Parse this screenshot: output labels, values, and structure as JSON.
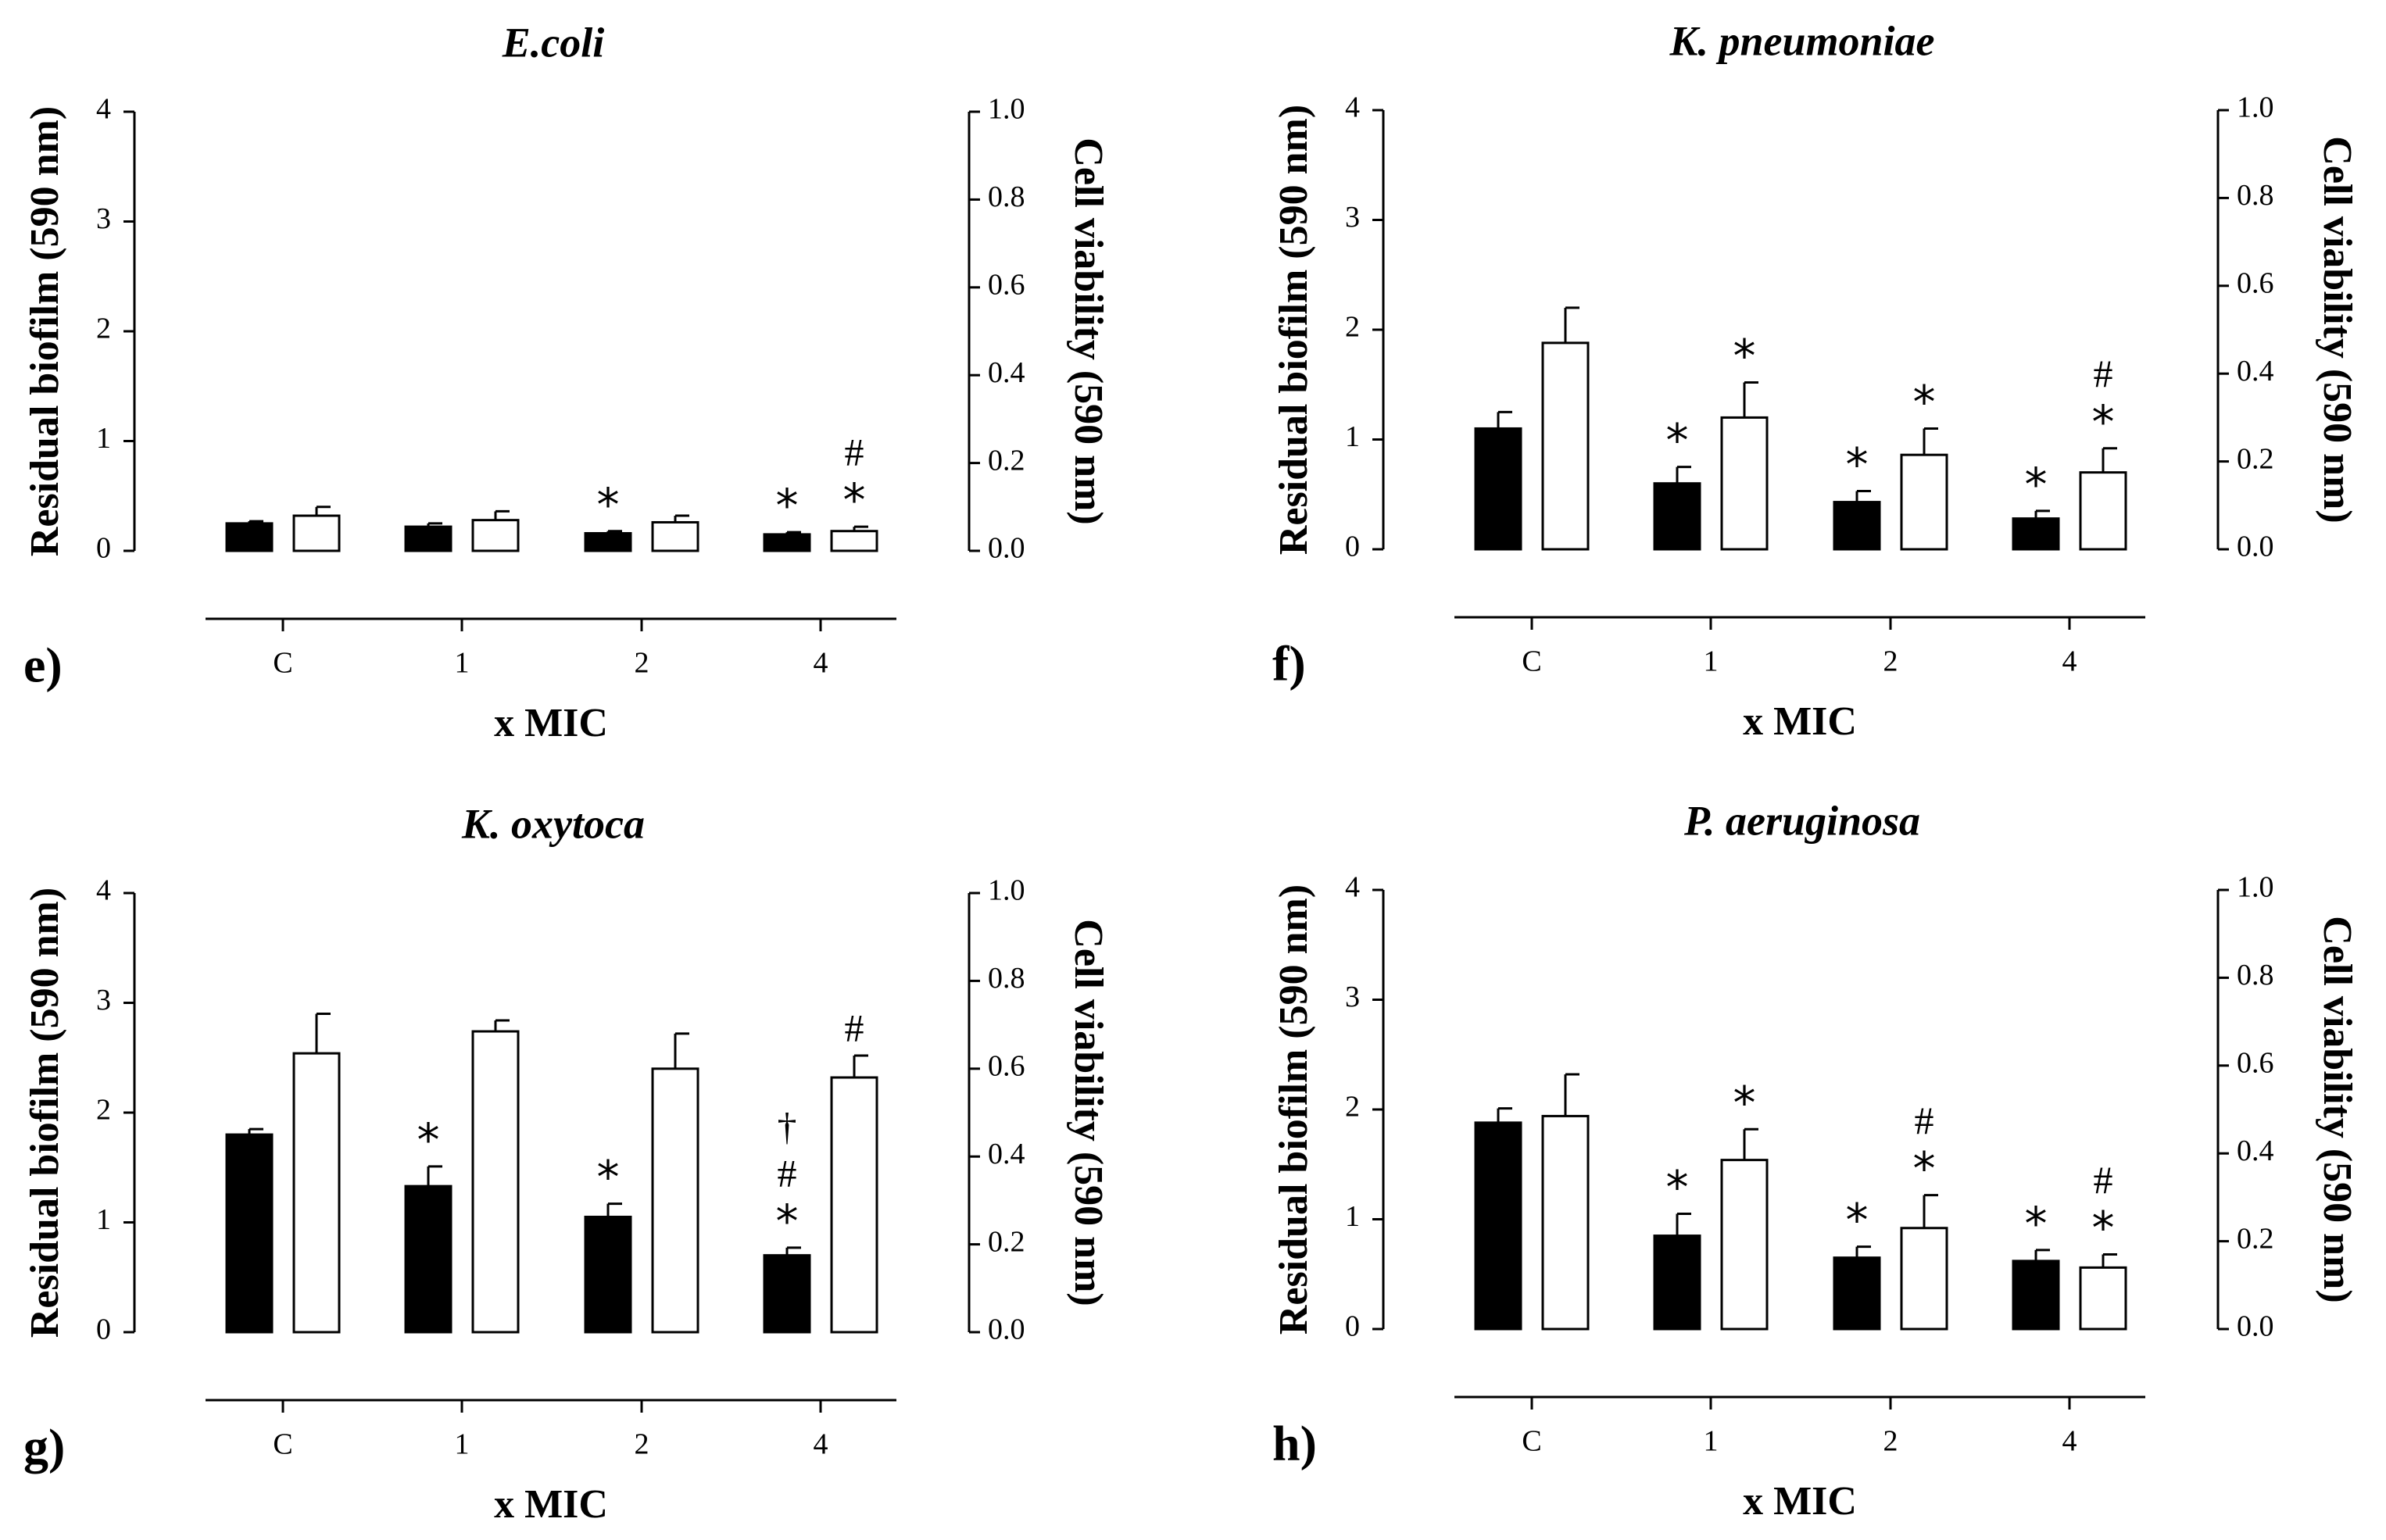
{
  "chart_data": [
    {
      "type": "bar",
      "panel_label": "e)",
      "title": "E.coli",
      "xlabel": "x MIC",
      "ylabel_left": "Residual biofilm (590 nm)",
      "ylabel_right": "Cell viability (590 nm)",
      "ylim_left": [
        0,
        4
      ],
      "ylim_right": [
        0,
        1.0
      ],
      "yticks_left": [
        "0",
        "1",
        "2",
        "3",
        "4"
      ],
      "yticks_right": [
        "0.0",
        "0.2",
        "0.4",
        "0.6",
        "0.8",
        "1.0"
      ],
      "categories": [
        "C",
        "1",
        "2",
        "4"
      ],
      "series": [
        {
          "name": "Residual biofilm",
          "fill": "#000000",
          "axis": "left",
          "values": [
            0.25,
            0.22,
            0.16,
            0.15
          ],
          "errors": [
            0.02,
            0.03,
            0.02,
            0.02
          ],
          "marks": [
            [],
            [],
            [
              "*"
            ],
            [
              "*"
            ]
          ]
        },
        {
          "name": "Cell viability",
          "fill": "#ffffff",
          "axis": "right",
          "values": [
            0.08,
            0.07,
            0.065,
            0.045
          ],
          "errors": [
            0.02,
            0.02,
            0.015,
            0.01
          ],
          "marks": [
            [],
            [],
            [],
            [
              "*",
              "#"
            ]
          ]
        }
      ]
    },
    {
      "type": "bar",
      "panel_label": "f)",
      "title": "K. pneumoniae",
      "xlabel": "x MIC",
      "ylabel_left": "Residual biofilm (590 nm)",
      "ylabel_right": "Cell viability (590 nm)",
      "ylim_left": [
        0,
        4
      ],
      "ylim_right": [
        0,
        1.0
      ],
      "yticks_left": [
        "0",
        "1",
        "2",
        "3",
        "4"
      ],
      "yticks_right": [
        "0.0",
        "0.2",
        "0.4",
        "0.6",
        "0.8",
        "1.0"
      ],
      "categories": [
        "C",
        "1",
        "2",
        "4"
      ],
      "series": [
        {
          "name": "Residual biofilm",
          "fill": "#000000",
          "axis": "left",
          "values": [
            1.1,
            0.6,
            0.43,
            0.28
          ],
          "errors": [
            0.15,
            0.15,
            0.1,
            0.07
          ],
          "marks": [
            [],
            [
              "*"
            ],
            [
              "*"
            ],
            [
              "*"
            ]
          ]
        },
        {
          "name": "Cell viability",
          "fill": "#ffffff",
          "axis": "right",
          "values": [
            0.47,
            0.3,
            0.215,
            0.175
          ],
          "errors": [
            0.08,
            0.08,
            0.06,
            0.055
          ],
          "marks": [
            [],
            [
              "*"
            ],
            [
              "*"
            ],
            [
              "*",
              "#"
            ]
          ]
        }
      ]
    },
    {
      "type": "bar",
      "panel_label": "g)",
      "title": "K. oxytoca",
      "xlabel": "x MIC",
      "ylabel_left": "Residual biofilm (590 nm)",
      "ylabel_right": "Cell viability (590 nm)",
      "ylim_left": [
        0,
        4
      ],
      "ylim_right": [
        0,
        1.0
      ],
      "yticks_left": [
        "0",
        "1",
        "2",
        "3",
        "4"
      ],
      "yticks_right": [
        "0.0",
        "0.2",
        "0.4",
        "0.6",
        "0.8",
        "1.0"
      ],
      "categories": [
        "C",
        "1",
        "2",
        "4"
      ],
      "series": [
        {
          "name": "Residual biofilm",
          "fill": "#000000",
          "axis": "left",
          "values": [
            1.8,
            1.33,
            1.05,
            0.7
          ],
          "errors": [
            0.05,
            0.18,
            0.12,
            0.07
          ],
          "marks": [
            [],
            [
              "*"
            ],
            [
              "*"
            ],
            [
              "*",
              "#",
              "†"
            ]
          ]
        },
        {
          "name": "Cell viability",
          "fill": "#ffffff",
          "axis": "right",
          "values": [
            0.635,
            0.685,
            0.6,
            0.58
          ],
          "errors": [
            0.09,
            0.025,
            0.08,
            0.05
          ],
          "marks": [
            [],
            [],
            [],
            [
              "#"
            ]
          ]
        }
      ]
    },
    {
      "type": "bar",
      "panel_label": "h)",
      "title": "P. aeruginosa",
      "xlabel": "x MIC",
      "ylabel_left": "Residual biofilm (590 nm)",
      "ylabel_right": "Cell viability (590 nm)",
      "ylim_left": [
        0,
        4
      ],
      "ylim_right": [
        0,
        1.0
      ],
      "yticks_left": [
        "0",
        "1",
        "2",
        "3",
        "4"
      ],
      "yticks_right": [
        "0.0",
        "0.2",
        "0.4",
        "0.6",
        "0.8",
        "1.0"
      ],
      "categories": [
        "C",
        "1",
        "2",
        "4"
      ],
      "series": [
        {
          "name": "Residual biofilm",
          "fill": "#000000",
          "axis": "left",
          "values": [
            1.88,
            0.85,
            0.65,
            0.62
          ],
          "errors": [
            0.13,
            0.2,
            0.1,
            0.1
          ],
          "marks": [
            [],
            [
              "*"
            ],
            [
              "*"
            ],
            [
              "*"
            ]
          ]
        },
        {
          "name": "Cell viability",
          "fill": "#ffffff",
          "axis": "right",
          "values": [
            0.485,
            0.385,
            0.23,
            0.14
          ],
          "errors": [
            0.095,
            0.07,
            0.075,
            0.03
          ],
          "marks": [
            [],
            [
              "*"
            ],
            [
              "*",
              "#"
            ],
            [
              "*",
              "#"
            ]
          ]
        }
      ]
    }
  ]
}
